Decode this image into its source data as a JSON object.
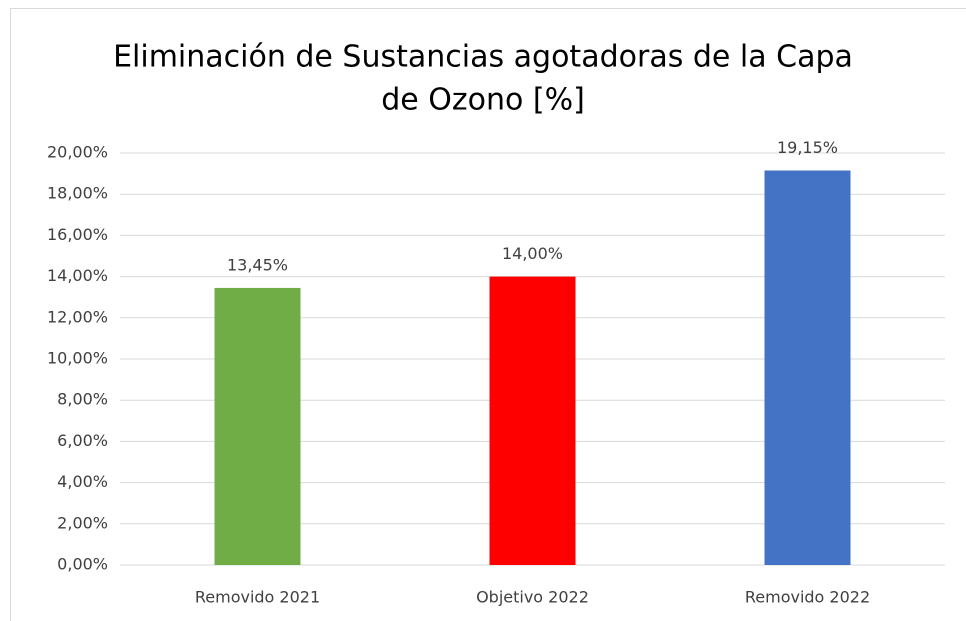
{
  "chart_data": {
    "type": "bar",
    "title": [
      "Eliminación de Sustancias agotadoras de la Capa",
      "de Ozono [%]"
    ],
    "categories": [
      "Removido 2021",
      "Objetivo 2022",
      "Removido 2022"
    ],
    "values": [
      13.45,
      14.0,
      19.15
    ],
    "value_labels": [
      "13,45%",
      "14,00%",
      "19,15%"
    ],
    "colors": [
      "#70ad47",
      "#ff0000",
      "#4472c4"
    ],
    "ylim": [
      0,
      20
    ],
    "yticks": [
      {
        "value": 0,
        "label": "0,00%"
      },
      {
        "value": 2,
        "label": "2,00%"
      },
      {
        "value": 4,
        "label": "4,00%"
      },
      {
        "value": 6,
        "label": "6,00%"
      },
      {
        "value": 8,
        "label": "8,00%"
      },
      {
        "value": 10,
        "label": "10,00%"
      },
      {
        "value": 12,
        "label": "12,00%"
      },
      {
        "value": 14,
        "label": "14,00%"
      },
      {
        "value": 16,
        "label": "16,00%"
      },
      {
        "value": 18,
        "label": "18,00%"
      },
      {
        "value": 20,
        "label": "20,00%"
      }
    ],
    "grid": true
  }
}
